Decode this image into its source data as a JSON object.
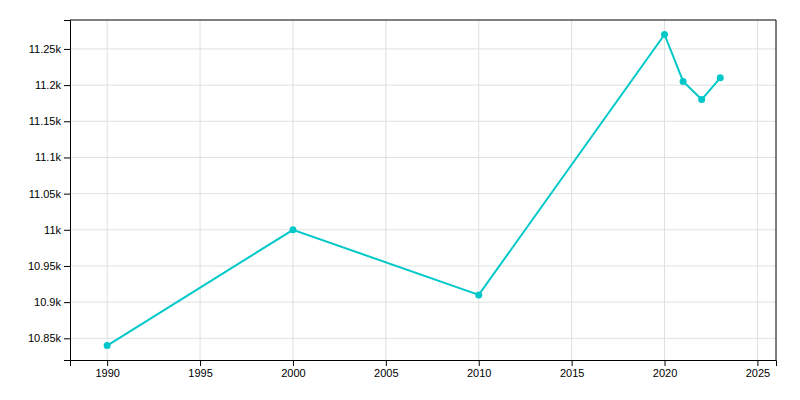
{
  "chart_data": {
    "type": "line",
    "x": [
      1990,
      2000,
      2010,
      2020,
      2021,
      2022,
      2023
    ],
    "values": [
      10840,
      11000,
      10910,
      11270,
      11205,
      11180,
      11210
    ],
    "color": "#00C8C8",
    "marker": "circle",
    "xlim": [
      1988,
      2026
    ],
    "ylim": [
      10820,
      11290
    ],
    "xticks": [
      1990,
      1995,
      2000,
      2005,
      2010,
      2015,
      2020,
      2025
    ],
    "yticks": [
      {
        "value": 10850,
        "label": "10.85k"
      },
      {
        "value": 10900,
        "label": "10.9k"
      },
      {
        "value": 10950,
        "label": "10.95k"
      },
      {
        "value": 11000,
        "label": "11k"
      },
      {
        "value": 11050,
        "label": "11.05k"
      },
      {
        "value": 11100,
        "label": "11.1k"
      },
      {
        "value": 11150,
        "label": "11.15k"
      },
      {
        "value": 11200,
        "label": "11.2k"
      },
      {
        "value": 11250,
        "label": "11.25k"
      }
    ],
    "grid": true
  }
}
